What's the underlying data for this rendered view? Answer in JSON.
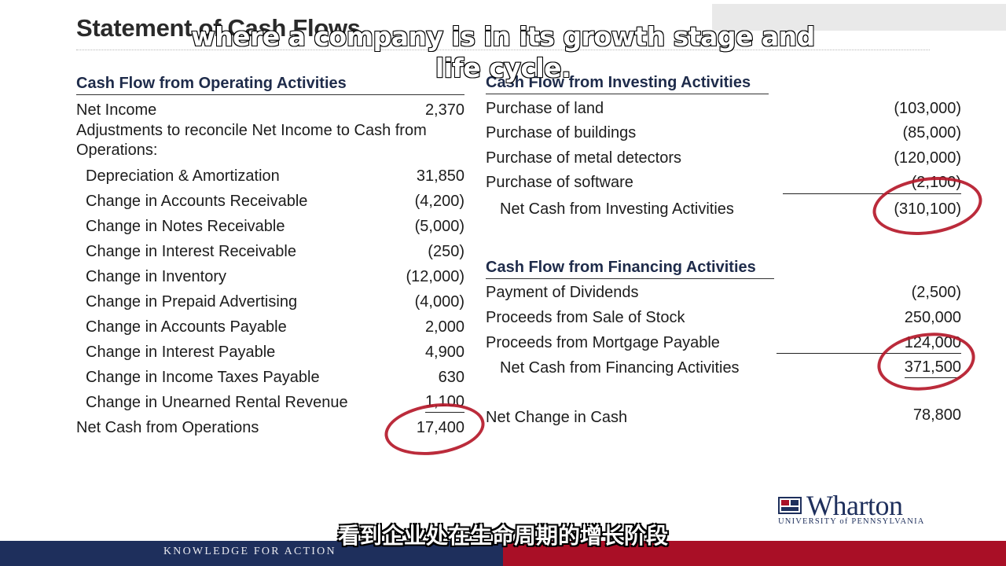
{
  "slide": {
    "title": "Statement of Cash Flows"
  },
  "operating": {
    "heading": "Cash Flow from Operating Activities",
    "net_income_label": "Net Income",
    "net_income_value": "2,370",
    "adjust_line1": "Adjustments to reconcile Net Income to Cash from",
    "adjust_line2": "Operations:",
    "items": [
      {
        "label": "Depreciation & Amortization",
        "value": "31,850"
      },
      {
        "label": "Change in Accounts Receivable",
        "value": "(4,200)"
      },
      {
        "label": "Change in Notes Receivable",
        "value": "(5,000)"
      },
      {
        "label": "Change in Interest Receivable",
        "value": "(250)"
      },
      {
        "label": "Change in Inventory",
        "value": "(12,000)"
      },
      {
        "label": "Change in Prepaid Advertising",
        "value": "(4,000)"
      },
      {
        "label": "Change in Accounts Payable",
        "value": "2,000"
      },
      {
        "label": "Change in Interest Payable",
        "value": "4,900"
      },
      {
        "label": "Change in Income Taxes Payable",
        "value": "630"
      },
      {
        "label": "Change in Unearned Rental Revenue",
        "value": "1,100"
      }
    ],
    "total_label": "Net Cash from Operations",
    "total_value": "17,400"
  },
  "investing": {
    "heading": "Cash Flow from Investing Activities",
    "items": [
      {
        "label": "Purchase of land",
        "value": "(103,000)"
      },
      {
        "label": "Purchase of buildings",
        "value": "(85,000)"
      },
      {
        "label": "Purchase of metal detectors",
        "value": "(120,000)"
      },
      {
        "label": "Purchase of software",
        "value": "(2,100)"
      }
    ],
    "total_label": "Net Cash from Investing Activities",
    "total_value": "(310,100)"
  },
  "financing": {
    "heading": "Cash Flow from Financing Activities",
    "items": [
      {
        "label": "Payment of Dividends",
        "value": "(2,500)"
      },
      {
        "label": "Proceeds from Sale of Stock",
        "value": "250,000"
      },
      {
        "label": "Proceeds from Mortgage Payable",
        "value": "124,000"
      }
    ],
    "total_label": "Net Cash from Financing Activities",
    "total_value": "371,500"
  },
  "net_change": {
    "label": "Net Change in Cash",
    "value": "78,800"
  },
  "captions": {
    "english_line1": "where a company is in its growth stage and",
    "english_line2": "life cycle.",
    "chinese": "看到企业处在生命周期的增长阶段"
  },
  "footer": {
    "tagline": "KNOWLEDGE FOR ACTION"
  },
  "logo": {
    "wordmark": "Wharton",
    "subtitle": "UNIVERSITY of PENNSYLVANIA"
  },
  "colors": {
    "navy": "#1e2f5c",
    "brand_red": "#a90f26",
    "annotation_red": "#b5192a"
  }
}
